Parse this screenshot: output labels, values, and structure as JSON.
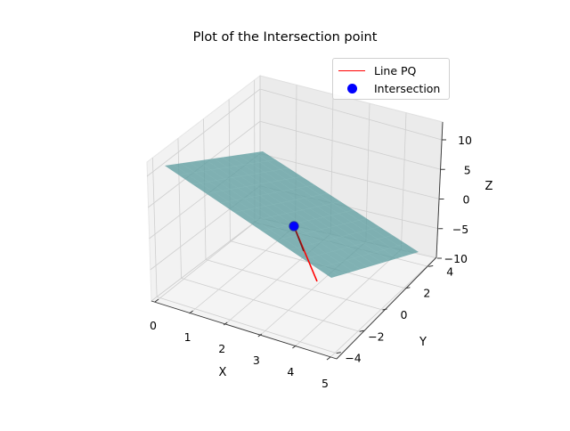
{
  "chart_data": {
    "type": "3d-surface-line-scatter",
    "title": "Plot of the Intersection point",
    "xlabel": "X",
    "ylabel": "Y",
    "zlabel": "Z",
    "xlim": [
      0,
      5
    ],
    "ylim": [
      -5,
      5
    ],
    "zlim": [
      -10,
      12
    ],
    "x_ticks": [
      "0",
      "1",
      "2",
      "3",
      "4",
      "5"
    ],
    "y_ticks": [
      "−4",
      "−2",
      "0",
      "2",
      "4"
    ],
    "z_ticks": [
      "10",
      "5",
      "0",
      "−5",
      "−10"
    ],
    "grid": true,
    "legend_position": "top-right",
    "series": [
      {
        "name": "Line PQ",
        "kind": "line",
        "color": "#ff0000"
      },
      {
        "name": "Intersection",
        "kind": "scatter",
        "color": "#0000ff"
      }
    ],
    "surface": {
      "color": "#5f9ea0",
      "opacity": 0.75
    }
  }
}
